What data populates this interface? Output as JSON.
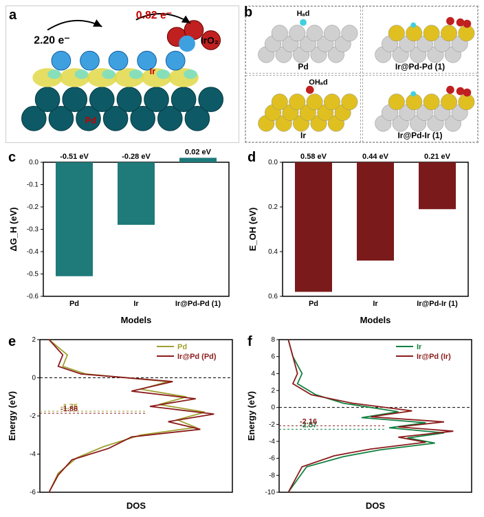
{
  "panels": {
    "a": {
      "label": "a",
      "annotations": {
        "e1": {
          "text": "2.20 e⁻",
          "color": "#000000"
        },
        "e2": {
          "text": "0.82 e⁻",
          "color": "#c00000"
        },
        "iro2": {
          "text": "IrO₂",
          "color": "#000000"
        },
        "ir": {
          "text": "Ir",
          "color": "#c00000"
        },
        "pd": {
          "text": "Pd",
          "color": "#c00000"
        }
      },
      "colors": {
        "pd_base": "#0d5a66",
        "ir_yellow": "#d4d040",
        "ir_ball": "#3fa0e0",
        "o_red": "#c02020",
        "iso_yellow": "#e0d848",
        "iso_cyan": "#60e0e0"
      }
    },
    "b": {
      "label": "b",
      "cells": [
        {
          "caption": "Pd",
          "adsorbate": "Hₐd",
          "base_color": "#d0d0d0",
          "top_color": "#d0d0d0",
          "adatom_color": "#40d0e0"
        },
        {
          "caption": "Ir@Pd-Pd (1)",
          "adsorbate": "",
          "base_color": "#d0d0d0",
          "top_color": "#e0c020",
          "adatom_color": "#c02020"
        },
        {
          "caption": "Ir",
          "adsorbate": "OHₐd",
          "base_color": "#e0c020",
          "top_color": "#e0c020",
          "adatom_color": "#c02020"
        },
        {
          "caption": "Ir@Pd-Ir (1)",
          "adsorbate": "",
          "base_color": "#d0d0d0",
          "top_color": "#e0c020",
          "adatom_color": "#c02020"
        }
      ]
    },
    "c": {
      "label": "c",
      "type": "bar",
      "ylabel": "ΔG_H (eV)",
      "xlabel": "Models",
      "categories": [
        "Pd",
        "Ir",
        "Ir@Pd-Pd (1)"
      ],
      "values": [
        -0.51,
        -0.28,
        0.02
      ],
      "bar_labels": [
        "-0.51 eV",
        "-0.28 eV",
        "0.02 eV"
      ],
      "bar_color": "#1f7a7a",
      "ylim": [
        0.0,
        -0.6
      ],
      "ytick_step": -0.1,
      "background_color": "#ffffff",
      "axis_color": "#000000",
      "tick_fontsize": 10,
      "label_fontsize": 12
    },
    "d": {
      "label": "d",
      "type": "bar",
      "ylabel": "E_OH (eV)",
      "xlabel": "Models",
      "categories": [
        "Pd",
        "Ir",
        "Ir@Pd-Ir (1)"
      ],
      "values": [
        0.58,
        0.44,
        0.21
      ],
      "bar_labels": [
        "0.58 eV",
        "0.44 eV",
        "0.21 eV"
      ],
      "bar_color": "#7a1a1a",
      "ylim": [
        0.0,
        0.6
      ],
      "ytick_step": 0.2,
      "background_color": "#ffffff",
      "axis_color": "#000000",
      "tick_fontsize": 10,
      "label_fontsize": 12
    },
    "e": {
      "label": "e",
      "type": "line",
      "xlabel": "DOS",
      "ylabel": "Energy (eV)",
      "ylim": [
        -6,
        2
      ],
      "ytick_step": 2,
      "series": [
        {
          "name": "Pd",
          "color": "#a0a030",
          "d_band": -1.75,
          "points": [
            [
              0.2,
              2
            ],
            [
              0.6,
              1.2
            ],
            [
              0.5,
              0.6
            ],
            [
              1.0,
              0.2
            ],
            [
              2.8,
              -0.2
            ],
            [
              2.2,
              -0.6
            ],
            [
              3.2,
              -1.0
            ],
            [
              2.6,
              -1.4
            ],
            [
              3.6,
              -1.8
            ],
            [
              3.0,
              -2.2
            ],
            [
              3.4,
              -2.6
            ],
            [
              2.2,
              -3.0
            ],
            [
              1.4,
              -3.6
            ],
            [
              0.8,
              -4.2
            ],
            [
              0.4,
              -5.0
            ],
            [
              0.2,
              -6.0
            ]
          ]
        },
        {
          "name": "Ir@Pd (Pd)",
          "color": "#8a1a1a",
          "d_band": -1.86,
          "points": [
            [
              0.2,
              2
            ],
            [
              0.5,
              1.2
            ],
            [
              0.4,
              0.6
            ],
            [
              0.9,
              0.2
            ],
            [
              2.9,
              -0.2
            ],
            [
              2.0,
              -0.7
            ],
            [
              3.4,
              -1.1
            ],
            [
              2.4,
              -1.5
            ],
            [
              3.8,
              -1.9
            ],
            [
              2.8,
              -2.3
            ],
            [
              3.5,
              -2.7
            ],
            [
              2.0,
              -3.1
            ],
            [
              1.5,
              -3.7
            ],
            [
              0.7,
              -4.3
            ],
            [
              0.4,
              -5.1
            ],
            [
              0.2,
              -6.0
            ]
          ]
        }
      ],
      "zero_line_color": "#000000",
      "background_color": "#ffffff"
    },
    "f": {
      "label": "f",
      "type": "line",
      "xlabel": "DOS",
      "ylabel": "Energy (eV)",
      "ylim": [
        -10,
        8
      ],
      "ytick_step": 2,
      "series": [
        {
          "name": "Ir",
          "color": "#108040",
          "d_band": -2.57,
          "points": [
            [
              0.2,
              8
            ],
            [
              0.3,
              6
            ],
            [
              0.5,
              4
            ],
            [
              0.4,
              2.8
            ],
            [
              0.8,
              1.5
            ],
            [
              1.4,
              0.5
            ],
            [
              2.6,
              -0.5
            ],
            [
              1.8,
              -1.2
            ],
            [
              3.2,
              -1.8
            ],
            [
              2.4,
              -2.4
            ],
            [
              3.6,
              -3.0
            ],
            [
              2.8,
              -3.6
            ],
            [
              3.4,
              -4.2
            ],
            [
              2.2,
              -5.0
            ],
            [
              1.4,
              -5.8
            ],
            [
              0.6,
              -7.0
            ],
            [
              0.2,
              -10
            ]
          ]
        },
        {
          "name": "Ir@Pd (Ir)",
          "color": "#8a1a1a",
          "d_band": -2.16,
          "points": [
            [
              0.2,
              8
            ],
            [
              0.3,
              6
            ],
            [
              0.4,
              4
            ],
            [
              0.3,
              2.8
            ],
            [
              0.7,
              1.5
            ],
            [
              1.6,
              0.5
            ],
            [
              2.9,
              -0.4
            ],
            [
              2.0,
              -1.1
            ],
            [
              3.6,
              -1.7
            ],
            [
              2.6,
              -2.3
            ],
            [
              3.8,
              -2.8
            ],
            [
              2.6,
              -3.5
            ],
            [
              3.2,
              -4.1
            ],
            [
              2.0,
              -4.9
            ],
            [
              1.2,
              -5.7
            ],
            [
              0.5,
              -7.0
            ],
            [
              0.2,
              -10
            ]
          ]
        }
      ],
      "zero_line_color": "#000000",
      "background_color": "#ffffff"
    }
  }
}
